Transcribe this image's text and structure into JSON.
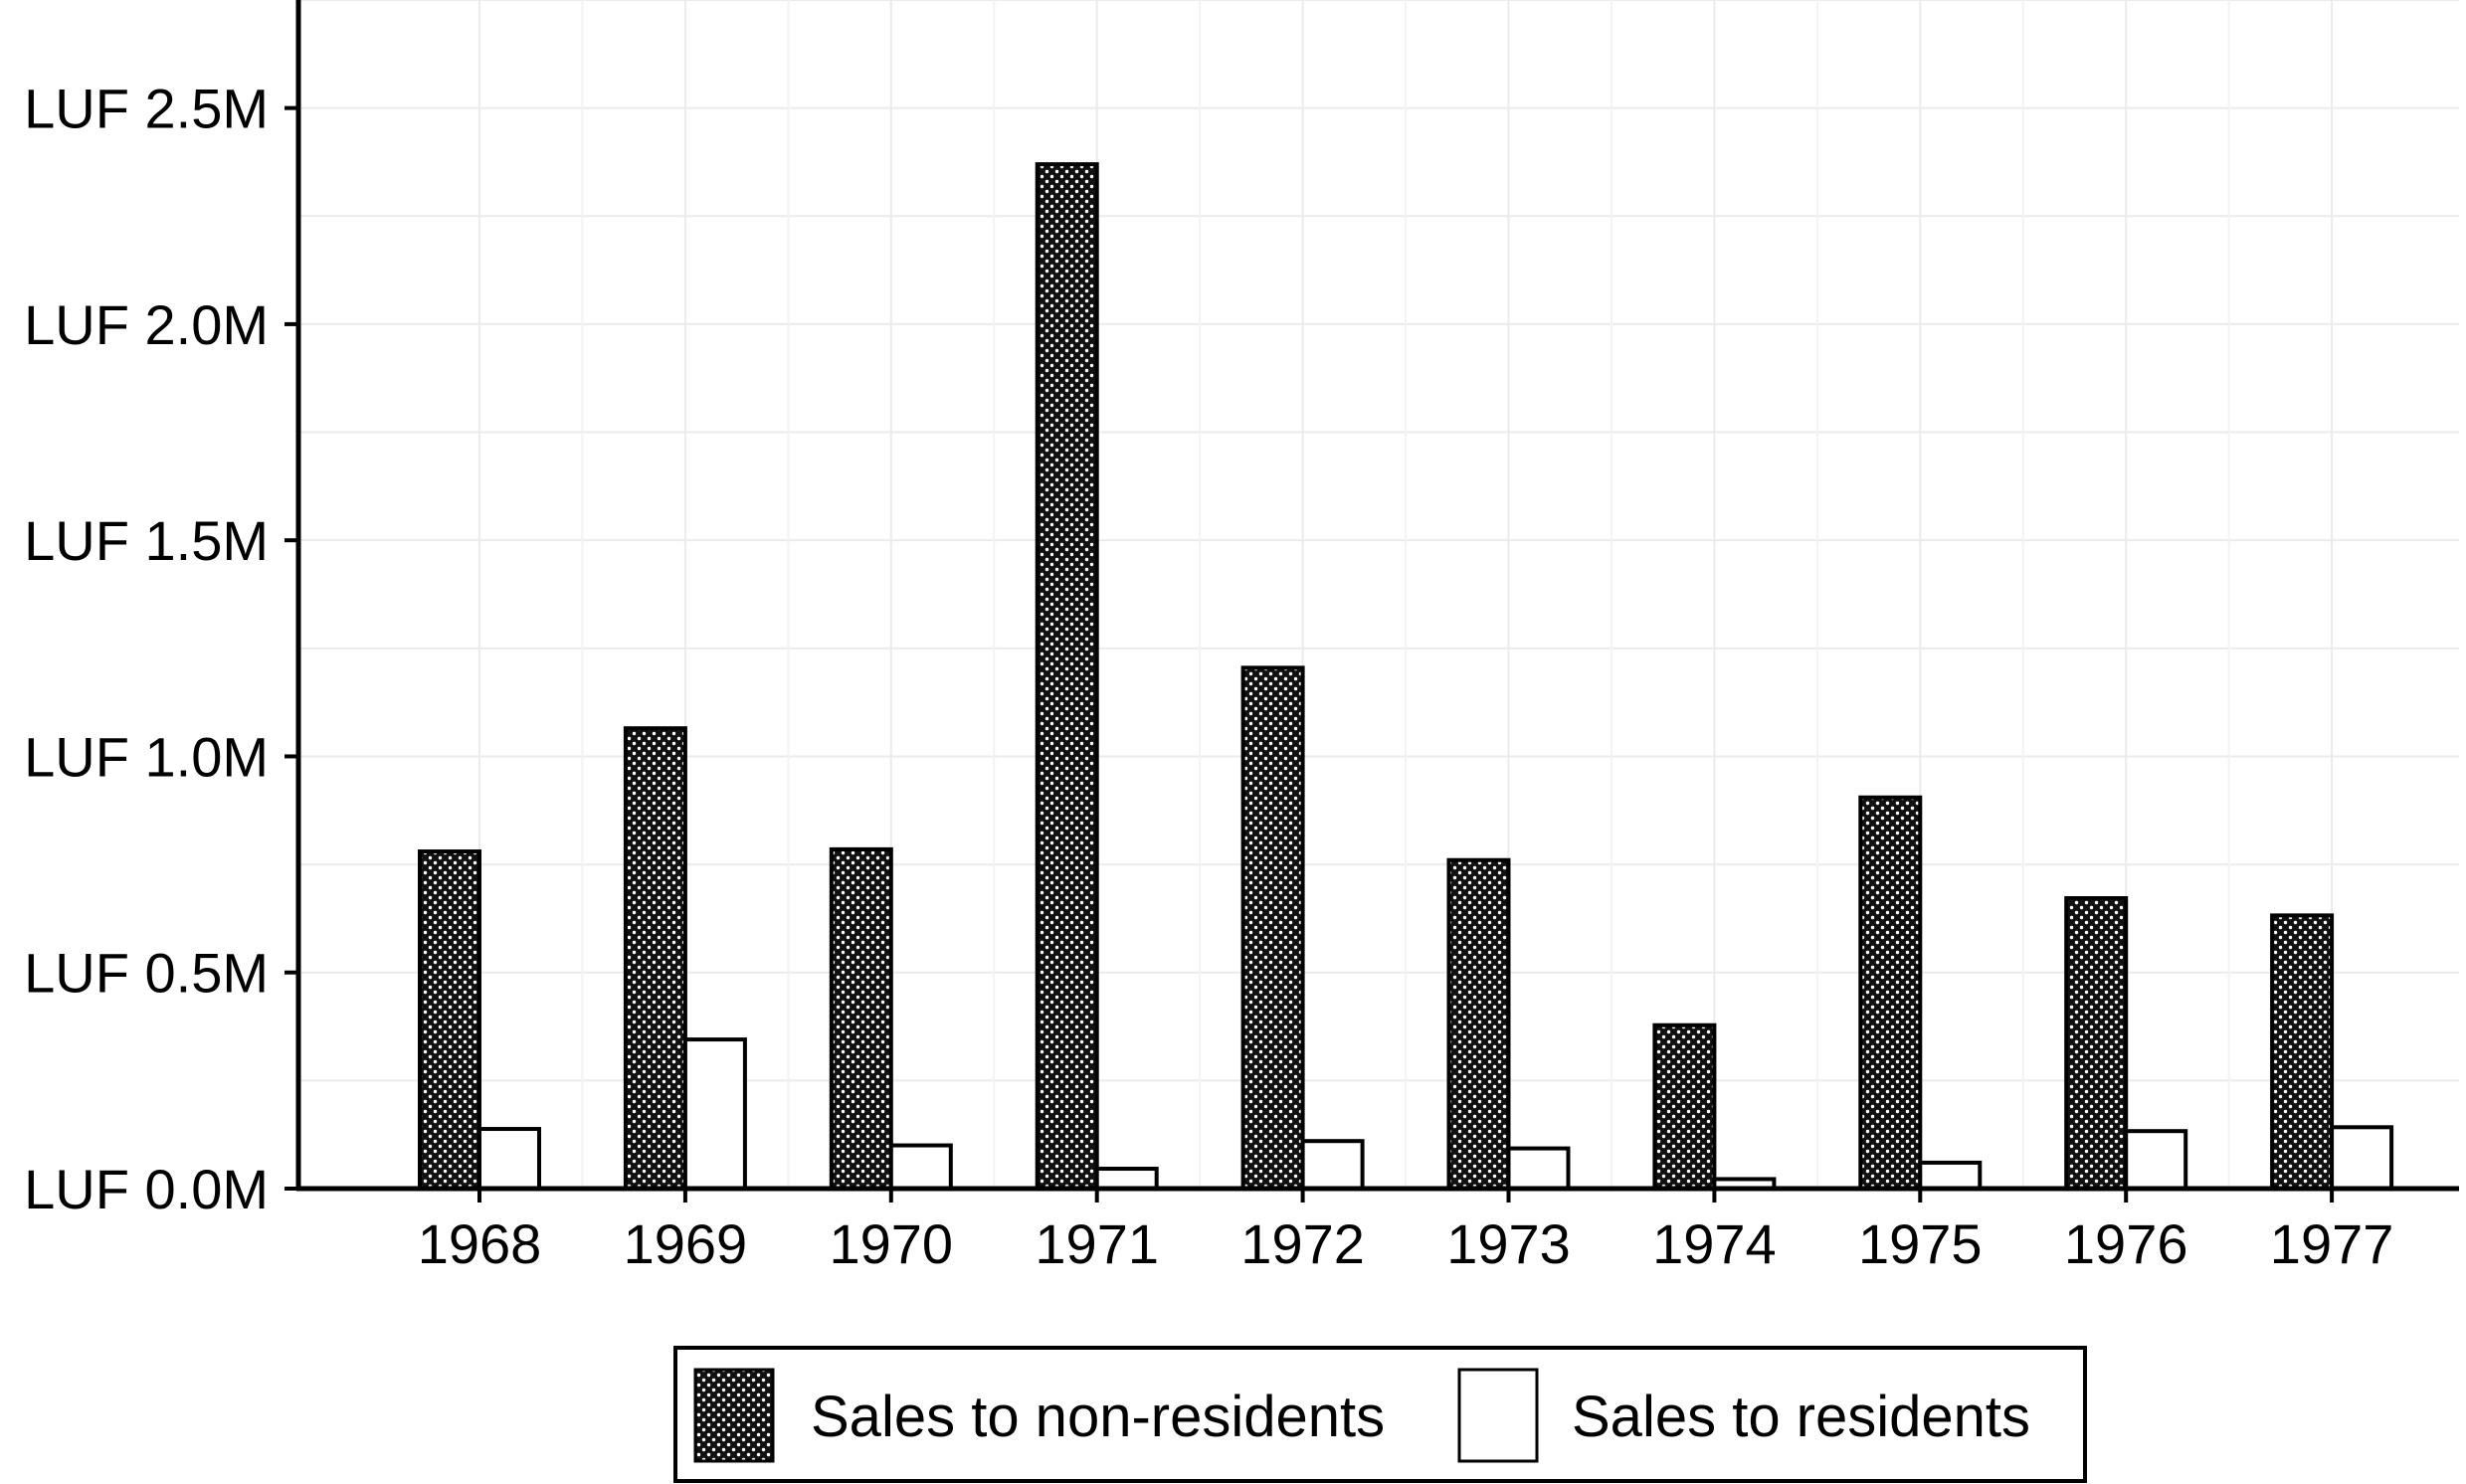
{
  "chart_data": {
    "type": "bar",
    "title": "",
    "xlabel": "",
    "ylabel": "",
    "categories": [
      "1968",
      "1969",
      "1970",
      "1971",
      "1972",
      "1973",
      "1974",
      "1975",
      "1976",
      "1977"
    ],
    "series": [
      {
        "name": "Sales to non-residents",
        "values": [
          780000,
          1065000,
          785000,
          2370000,
          1205000,
          760000,
          378000,
          905000,
          672000,
          632000
        ],
        "fill": "dotted-black"
      },
      {
        "name": "Sales to residents",
        "values": [
          138000,
          345000,
          100000,
          46000,
          110000,
          93000,
          22000,
          60000,
          133000,
          142000
        ],
        "fill": "#ffffff"
      }
    ],
    "ylim": [
      0,
      2750000
    ],
    "yticks": [
      0,
      500000,
      1000000,
      1500000,
      2000000,
      2500000
    ],
    "ytick_labels": [
      "LUF 0.0M",
      "LUF 0.5M",
      "LUF 1.0M",
      "LUF 1.5M",
      "LUF 2.0M",
      "LUF 2.5M"
    ],
    "grid": true,
    "legend_position": "bottom"
  }
}
